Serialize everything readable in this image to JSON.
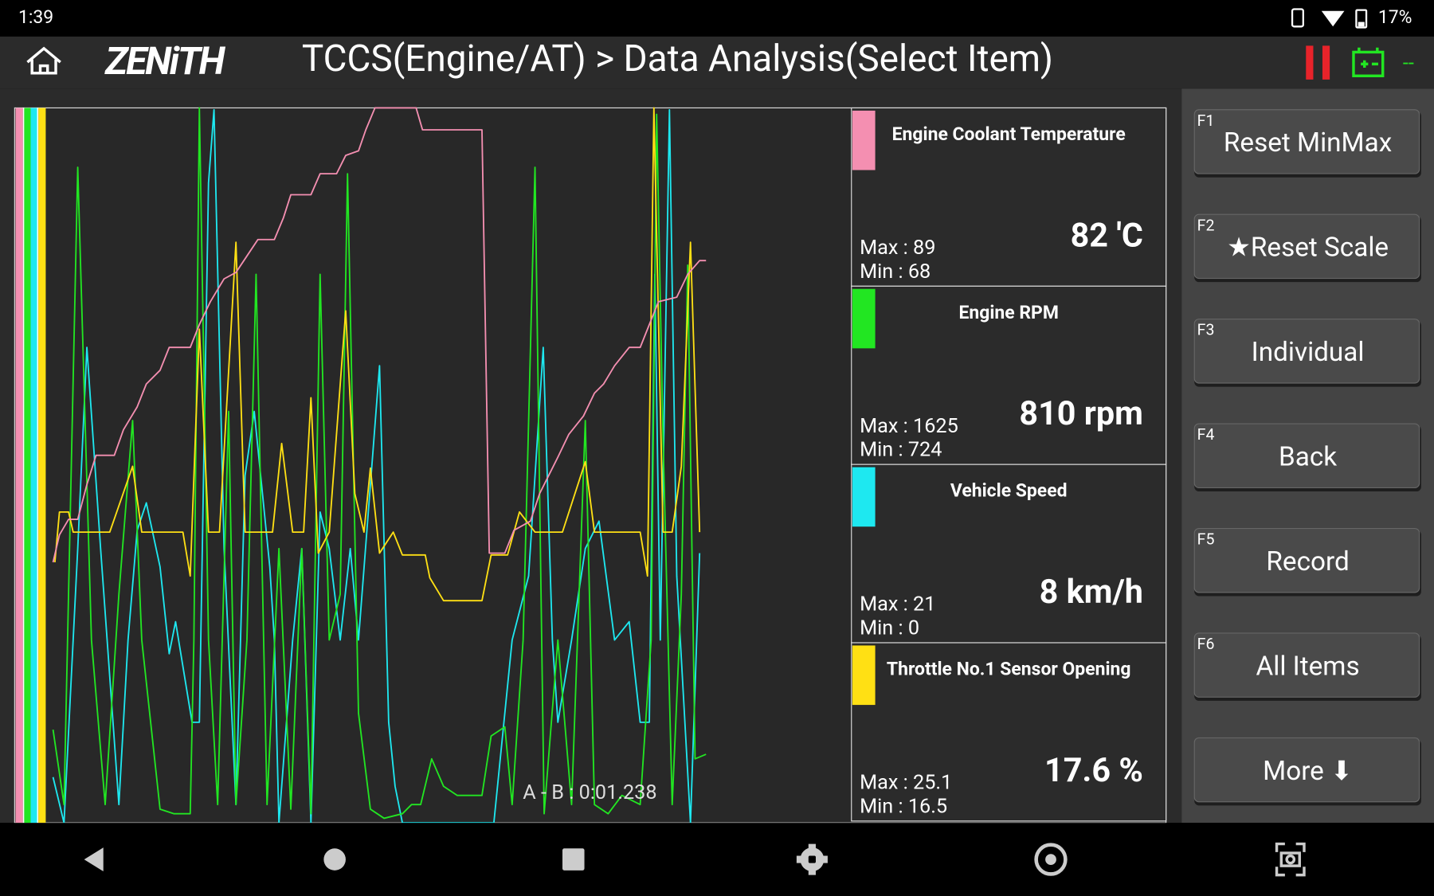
{
  "status_bar": {
    "time": "1:39",
    "battery": "17%"
  },
  "header": {
    "logo": "ZENiTH",
    "title": "TCCS(Engine/AT) > Data Analysis(Select Item)",
    "status": "--"
  },
  "chart": {
    "cursor_label": "A - B : 0:01.238"
  },
  "items": [
    {
      "name": "Engine Coolant Temperature",
      "color": "#f48fb1",
      "value": "82 'C",
      "max": "Max : 89",
      "min": "Min :   68"
    },
    {
      "name": "Engine RPM",
      "color": "#22e622",
      "value": "810 rpm",
      "max": "Max :  1625",
      "min": "Min : 724"
    },
    {
      "name": "Vehicle Speed",
      "color": "#1ee8f0",
      "value": "8 km/h",
      "max": "Max :    21",
      "min": "Min :    0"
    },
    {
      "name": "Throttle No.1 Sensor Opening",
      "color": "#ffe014",
      "value": "17.6 %",
      "max": "Max :  25.1",
      "min": "Min :  16.5"
    }
  ],
  "function_keys": [
    {
      "key": "F1",
      "label": "Reset MinMax"
    },
    {
      "key": "F2",
      "label": "★Reset Scale"
    },
    {
      "key": "F3",
      "label": "Individual"
    },
    {
      "key": "F4",
      "label": "Back"
    },
    {
      "key": "F5",
      "label": "Record"
    },
    {
      "key": "F6",
      "label": "All Items"
    },
    {
      "label": "More ⬇"
    }
  ]
}
